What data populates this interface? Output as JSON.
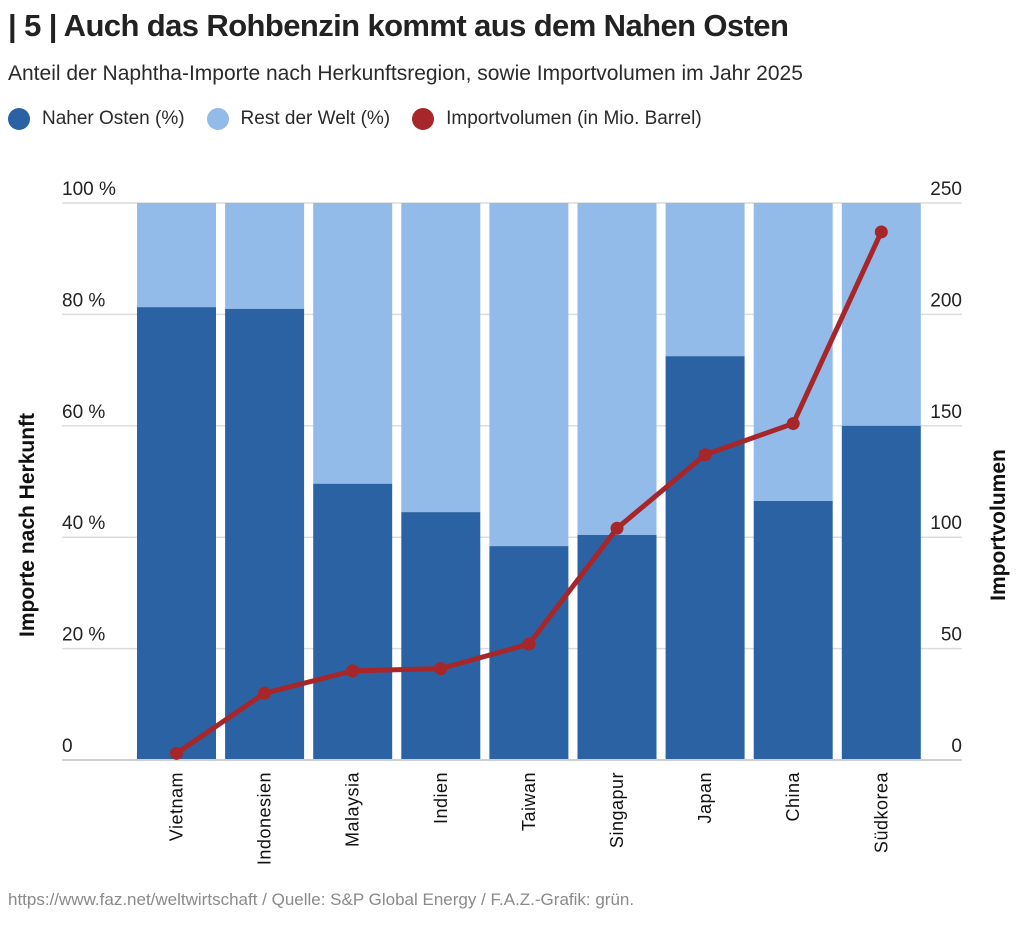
{
  "header": {
    "title": "| 5 | Auch das Rohbenzin kommt aus dem Nahen Osten",
    "subtitle": "Anteil der Naphtha-Importe nach Herkunftsregion, sowie Importvolumen im Jahr 2025"
  },
  "legend": [
    {
      "label": "Naher Osten (%)",
      "color": "#2a62a3"
    },
    {
      "label": "Rest der Welt (%)",
      "color": "#93bbea"
    },
    {
      "label": "Importvolumen (in Mio. Barrel)",
      "color": "#a6262a"
    }
  ],
  "footer": {
    "source": "https://www.faz.net/weltwirtschaft / Quelle: S&P Global Energy / F.A.Z.-Grafik: grün."
  },
  "chart_data": {
    "type": "bar",
    "stacked": true,
    "title": "| 5 | Auch das Rohbenzin kommt aus dem Nahen Osten",
    "subtitle": "Anteil der Naphtha-Importe nach Herkunftsregion, sowie Importvolumen im Jahr 2025",
    "categories": [
      "Vietnam",
      "Indonesien",
      "Malaysia",
      "Indien",
      "Taiwan",
      "Singapur",
      "Japan",
      "China",
      "Südkorea"
    ],
    "series": [
      {
        "name": "Naher Osten (%)",
        "type": "bar",
        "axis": "left",
        "color": "#2a62a3",
        "values": [
          81.3,
          81.0,
          49.6,
          44.5,
          38.4,
          40.4,
          72.5,
          46.5,
          60.0
        ]
      },
      {
        "name": "Rest der Welt (%)",
        "type": "bar",
        "axis": "left",
        "color": "#93bbea",
        "values": [
          18.7,
          19.0,
          50.4,
          55.5,
          61.6,
          59.6,
          27.5,
          53.5,
          40.0
        ]
      },
      {
        "name": "Importvolumen (in Mio. Barrel)",
        "type": "line",
        "axis": "right",
        "color": "#a6262a",
        "values": [
          3,
          30,
          40,
          41,
          52,
          104,
          137,
          151,
          237
        ]
      }
    ],
    "ylabel": "Importe nach Herkunft",
    "y2label": "Importvolumen",
    "xlabel": "",
    "ylim": [
      0,
      100
    ],
    "y2lim": [
      0,
      250
    ],
    "yticks": [
      0,
      20,
      40,
      60,
      80,
      100
    ],
    "ytick_labels": [
      "0",
      "20 %",
      "40 %",
      "60 %",
      "80 %",
      "100 %"
    ],
    "y2ticks": [
      0,
      50,
      100,
      150,
      200,
      250
    ],
    "y2tick_labels": [
      "0",
      "50",
      "100",
      "150",
      "200",
      "250"
    ],
    "grid": true,
    "legend_position": "top-left"
  }
}
